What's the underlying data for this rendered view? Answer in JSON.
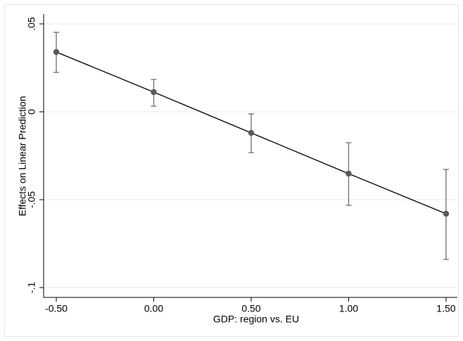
{
  "chart_data": {
    "type": "line",
    "x_label": "GDP: region vs. EU",
    "y_label": "Effects on Linear Prediction",
    "x": [
      -0.5,
      0,
      0.5,
      1,
      1.5
    ],
    "series": [
      {
        "values": [
          0.034,
          0.0112,
          -0.012,
          -0.0352,
          -0.058
        ],
        "lower": [
          0.0224,
          0.0032,
          -0.0232,
          -0.0532,
          -0.084
        ],
        "upper": [
          0.0452,
          0.0184,
          -0.0012,
          -0.0176,
          -0.0328
        ],
        "color": "#595959",
        "line_color": "#000000",
        "error_color": "#6e6e6e"
      }
    ],
    "xlim": [
      -0.565,
      1.558
    ],
    "ylim": [
      -0.1056,
      0.0556
    ],
    "xticks": [
      {
        "value": -0.5,
        "label": "-0.50"
      },
      {
        "value": 0,
        "label": "0.00"
      },
      {
        "value": 0.5,
        "label": "0.50"
      },
      {
        "value": 1,
        "label": "1.00"
      },
      {
        "value": 1.5,
        "label": "1.50"
      }
    ],
    "yticks": [
      {
        "value": -0.1,
        "label": "-.1"
      },
      {
        "value": -0.05,
        "label": "-.05"
      },
      0,
      {
        "value": 0.05,
        "label": ".05"
      }
    ],
    "grid": true
  }
}
